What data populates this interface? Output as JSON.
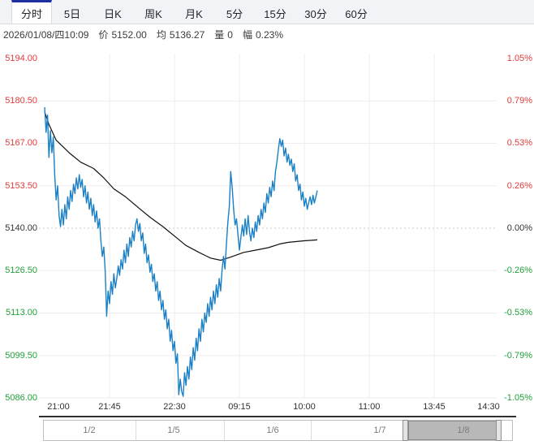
{
  "tabs": {
    "items": [
      {
        "label": "分时",
        "active": true
      },
      {
        "label": "5日"
      },
      {
        "label": "日K"
      },
      {
        "label": "周K"
      },
      {
        "label": "月K"
      },
      {
        "label": "5分"
      },
      {
        "label": "15分"
      },
      {
        "label": "30分"
      },
      {
        "label": "60分"
      }
    ]
  },
  "info": {
    "datetime": "2026/01/08/四10:09",
    "price_label": "价",
    "price_value": "5152.00",
    "avg_label": "均",
    "avg_value": "5136.27",
    "volume_label": "量",
    "volume_value": "0",
    "change_label": "幅",
    "change_value": "0.23%"
  },
  "axes": {
    "left": [
      {
        "text": "5194.00",
        "tone": "up"
      },
      {
        "text": "5180.50",
        "tone": "up"
      },
      {
        "text": "5167.00",
        "tone": "up"
      },
      {
        "text": "5153.50",
        "tone": "up"
      },
      {
        "text": "5140.00",
        "tone": "nt"
      },
      {
        "text": "5126.50",
        "tone": "dn"
      },
      {
        "text": "5113.00",
        "tone": "dn"
      },
      {
        "text": "5099.50",
        "tone": "dn"
      },
      {
        "text": "5086.00",
        "tone": "dn"
      }
    ],
    "right": [
      {
        "text": "1.05%",
        "tone": "up"
      },
      {
        "text": "0.79%",
        "tone": "up"
      },
      {
        "text": "0.53%",
        "tone": "up"
      },
      {
        "text": "0.26%",
        "tone": "up"
      },
      {
        "text": "0.00%",
        "tone": "nt"
      },
      {
        "text": "-0.26%",
        "tone": "dn"
      },
      {
        "text": "-0.53%",
        "tone": "dn"
      },
      {
        "text": "-0.79%",
        "tone": "dn"
      },
      {
        "text": "-1.05%",
        "tone": "dn"
      }
    ],
    "bottom": [
      "21:00",
      "21:45",
      "22:30",
      "09:15",
      "10:00",
      "11:00",
      "13:45",
      "14:30"
    ]
  },
  "colors": {
    "up": "#e23b3b",
    "down": "#21a03a",
    "neutral": "#333333",
    "price_line": "#1b80c6",
    "avg_line": "#111111",
    "tab_accent": "#1d2f9e",
    "grid": "#ededed",
    "axis_line": "#303030"
  },
  "navigator": {
    "labels": [
      "1/2",
      "1/5",
      "1/6",
      "1/7",
      "1/8"
    ],
    "selected_label": "1/8",
    "spark": [
      [
        53,
        0.42
      ],
      [
        150,
        0.42
      ],
      [
        152,
        0.55
      ],
      [
        166,
        0.55
      ],
      [
        170,
        0.62
      ],
      [
        182,
        0.57
      ],
      [
        192,
        0.6
      ],
      [
        203,
        0.57
      ],
      [
        214,
        0.66
      ],
      [
        226,
        0.76
      ],
      [
        238,
        0.88
      ],
      [
        248,
        0.95
      ],
      [
        256,
        0.9
      ],
      [
        262,
        0.94
      ],
      [
        270,
        0.72
      ],
      [
        278,
        0.56
      ],
      [
        288,
        0.6
      ],
      [
        297,
        0.5
      ],
      [
        307,
        0.56
      ],
      [
        317,
        0.48
      ],
      [
        327,
        0.53
      ],
      [
        337,
        0.42
      ],
      [
        347,
        0.47
      ],
      [
        357,
        0.38
      ],
      [
        367,
        0.43
      ],
      [
        377,
        0.35
      ],
      [
        382,
        0.33
      ],
      [
        384,
        0.15
      ],
      [
        392,
        0.22
      ],
      [
        400,
        0.14
      ],
      [
        410,
        0.2
      ],
      [
        420,
        0.11
      ],
      [
        428,
        0.17
      ],
      [
        433,
        0.3
      ],
      [
        437,
        0.58
      ],
      [
        441,
        0.52
      ],
      [
        447,
        0.57
      ],
      [
        455,
        0.48
      ],
      [
        463,
        0.53
      ],
      [
        471,
        0.44
      ],
      [
        479,
        0.5
      ],
      [
        487,
        0.4
      ],
      [
        495,
        0.45
      ],
      [
        502,
        0.52
      ],
      [
        510,
        0.48
      ],
      [
        518,
        0.56
      ],
      [
        526,
        0.5
      ],
      [
        534,
        0.6
      ],
      [
        540,
        0.66
      ],
      [
        546,
        0.57
      ],
      [
        552,
        0.62
      ],
      [
        560,
        0.48
      ],
      [
        566,
        0.56
      ],
      [
        572,
        0.42
      ],
      [
        578,
        0.52
      ],
      [
        585,
        0.46
      ],
      [
        592,
        0.54
      ],
      [
        599,
        0.4
      ],
      [
        606,
        0.47
      ],
      [
        613,
        0.36
      ],
      [
        620,
        0.42
      ],
      [
        626,
        0.32
      ],
      [
        632,
        0.38
      ]
    ]
  },
  "chart_data": {
    "type": "line",
    "title": "分时走势 (intraday price vs average)",
    "prev_close": 5140.0,
    "last_price": 5152.0,
    "average_price": 5136.27,
    "change_pct": "0.23%",
    "ylim": [
      5086.0,
      5194.0
    ],
    "x_total_minutes": 345,
    "price_ticks": [
      5194.0,
      5180.5,
      5167.0,
      5153.5,
      5140.0,
      5126.5,
      5113.0,
      5099.5,
      5086.0
    ],
    "pct_ticks": [
      "1.05%",
      "0.79%",
      "0.53%",
      "0.26%",
      "0.00%",
      "-0.26%",
      "-0.53%",
      "-0.79%",
      "-1.05%"
    ],
    "x_axis_ticks": [
      {
        "label": "21:00",
        "minute": 0
      },
      {
        "label": "21:45",
        "minute": 45
      },
      {
        "label": "22:30",
        "minute": 90
      },
      {
        "label": "09:15",
        "minute": 135
      },
      {
        "label": "10:00",
        "minute": 180
      },
      {
        "label": "11:00",
        "minute": 225
      },
      {
        "label": "13:45",
        "minute": 270
      },
      {
        "label": "14:30",
        "minute": 315
      }
    ],
    "series": [
      {
        "name": "price",
        "color": "#1b80c6",
        "points": [
          [
            0,
            5178.5
          ],
          [
            1,
            5170.5
          ],
          [
            2,
            5176
          ],
          [
            3,
            5162.5
          ],
          [
            4,
            5171
          ],
          [
            5,
            5164
          ],
          [
            6,
            5169
          ],
          [
            7,
            5157
          ],
          [
            8,
            5149
          ],
          [
            9,
            5153.5
          ],
          [
            10,
            5144
          ],
          [
            11,
            5140.5
          ],
          [
            12,
            5146
          ],
          [
            13,
            5141
          ],
          [
            14,
            5147.5
          ],
          [
            15,
            5143
          ],
          [
            16,
            5150
          ],
          [
            17,
            5146
          ],
          [
            18,
            5152
          ],
          [
            19,
            5148.5
          ],
          [
            20,
            5154
          ],
          [
            21,
            5151
          ],
          [
            22,
            5156
          ],
          [
            23,
            5152.5
          ],
          [
            24,
            5157
          ],
          [
            25,
            5153
          ],
          [
            26,
            5155.5
          ],
          [
            27,
            5150
          ],
          [
            28,
            5153.5
          ],
          [
            29,
            5148
          ],
          [
            30,
            5151.5
          ],
          [
            31,
            5146
          ],
          [
            32,
            5149.5
          ],
          [
            33,
            5144
          ],
          [
            34,
            5147.5
          ],
          [
            35,
            5142
          ],
          [
            36,
            5145.5
          ],
          [
            37,
            5140
          ],
          [
            38,
            5143
          ],
          [
            39,
            5136
          ],
          [
            40,
            5131
          ],
          [
            41,
            5134
          ],
          [
            42,
            5126
          ],
          [
            43,
            5112
          ],
          [
            44,
            5120
          ],
          [
            45,
            5116
          ],
          [
            46,
            5123
          ],
          [
            47,
            5119
          ],
          [
            48,
            5125.5
          ],
          [
            49,
            5121
          ],
          [
            50,
            5124
          ],
          [
            51,
            5128
          ],
          [
            52,
            5125
          ],
          [
            53,
            5130
          ],
          [
            54,
            5127
          ],
          [
            55,
            5133
          ],
          [
            56,
            5129
          ],
          [
            57,
            5135
          ],
          [
            58,
            5131
          ],
          [
            59,
            5137
          ],
          [
            60,
            5134
          ],
          [
            61,
            5139
          ],
          [
            62,
            5136
          ],
          [
            63,
            5141
          ],
          [
            64,
            5143
          ],
          [
            65,
            5139
          ],
          [
            66,
            5141.5
          ],
          [
            67,
            5136
          ],
          [
            68,
            5138.5
          ],
          [
            69,
            5132
          ],
          [
            70,
            5135
          ],
          [
            71,
            5129
          ],
          [
            72,
            5131.5
          ],
          [
            73,
            5126
          ],
          [
            74,
            5128.5
          ],
          [
            75,
            5123
          ],
          [
            76,
            5125.5
          ],
          [
            77,
            5120
          ],
          [
            78,
            5123
          ],
          [
            79,
            5117
          ],
          [
            80,
            5120
          ],
          [
            81,
            5114
          ],
          [
            82,
            5117
          ],
          [
            83,
            5111
          ],
          [
            84,
            5114
          ],
          [
            85,
            5108
          ],
          [
            86,
            5111
          ],
          [
            87,
            5104
          ],
          [
            88,
            5107.5
          ],
          [
            89,
            5101
          ],
          [
            90,
            5104
          ],
          [
            91,
            5097
          ],
          [
            92,
            5100
          ],
          [
            93,
            5087
          ],
          [
            94,
            5092
          ],
          [
            95,
            5088
          ],
          [
            96,
            5086.5
          ],
          [
            97,
            5094
          ],
          [
            98,
            5090
          ],
          [
            99,
            5096
          ],
          [
            100,
            5092
          ],
          [
            101,
            5099
          ],
          [
            102,
            5095
          ],
          [
            103,
            5102
          ],
          [
            104,
            5098
          ],
          [
            105,
            5105
          ],
          [
            106,
            5101
          ],
          [
            107,
            5108
          ],
          [
            108,
            5104
          ],
          [
            109,
            5111
          ],
          [
            110,
            5107
          ],
          [
            111,
            5113
          ],
          [
            112,
            5110
          ],
          [
            113,
            5116
          ],
          [
            114,
            5112
          ],
          [
            115,
            5118
          ],
          [
            116,
            5114
          ],
          [
            117,
            5120
          ],
          [
            118,
            5116
          ],
          [
            119,
            5122
          ],
          [
            120,
            5118
          ],
          [
            121,
            5124
          ],
          [
            122,
            5120
          ],
          [
            123,
            5127
          ],
          [
            124,
            5131
          ],
          [
            125,
            5127
          ],
          [
            126,
            5135
          ],
          [
            127,
            5142
          ],
          [
            128,
            5147
          ],
          [
            129,
            5158
          ],
          [
            130,
            5153
          ],
          [
            131,
            5146
          ],
          [
            132,
            5141
          ],
          [
            133,
            5143
          ],
          [
            134,
            5138
          ],
          [
            135,
            5133
          ],
          [
            136,
            5137
          ],
          [
            137,
            5141
          ],
          [
            138,
            5137.5
          ],
          [
            139,
            5143
          ],
          [
            140,
            5138
          ],
          [
            141,
            5144
          ],
          [
            142,
            5139
          ],
          [
            143,
            5136
          ],
          [
            144,
            5140
          ],
          [
            145,
            5137
          ],
          [
            146,
            5142
          ],
          [
            147,
            5139
          ],
          [
            148,
            5144
          ],
          [
            149,
            5141
          ],
          [
            150,
            5146
          ],
          [
            151,
            5143
          ],
          [
            152,
            5148
          ],
          [
            153,
            5145
          ],
          [
            154,
            5151
          ],
          [
            155,
            5148
          ],
          [
            156,
            5153
          ],
          [
            157,
            5150
          ],
          [
            158,
            5155
          ],
          [
            159,
            5152
          ],
          [
            160,
            5158
          ],
          [
            161,
            5161
          ],
          [
            162,
            5165
          ],
          [
            163,
            5168.5
          ],
          [
            164,
            5166
          ],
          [
            165,
            5168
          ],
          [
            166,
            5163
          ],
          [
            167,
            5165.5
          ],
          [
            168,
            5161
          ],
          [
            169,
            5163.5
          ],
          [
            170,
            5160
          ],
          [
            171,
            5162
          ],
          [
            172,
            5158
          ],
          [
            173,
            5160.5
          ],
          [
            174,
            5155
          ],
          [
            175,
            5157
          ],
          [
            176,
            5152
          ],
          [
            177,
            5154
          ],
          [
            178,
            5149
          ],
          [
            179,
            5151.5
          ],
          [
            180,
            5147
          ],
          [
            181,
            5149.5
          ],
          [
            182,
            5146
          ],
          [
            183,
            5148
          ],
          [
            184,
            5150
          ],
          [
            185,
            5147.5
          ],
          [
            186,
            5150.5
          ],
          [
            187,
            5148
          ],
          [
            188,
            5150
          ],
          [
            189,
            5152
          ]
        ]
      },
      {
        "name": "average",
        "color": "#111111",
        "points": [
          [
            0,
            5177
          ],
          [
            3,
            5173
          ],
          [
            8,
            5168
          ],
          [
            17,
            5164
          ],
          [
            25,
            5161
          ],
          [
            34,
            5159
          ],
          [
            41,
            5156
          ],
          [
            48,
            5152.5
          ],
          [
            56,
            5150
          ],
          [
            65,
            5146.5
          ],
          [
            73,
            5143.5
          ],
          [
            82,
            5140.5
          ],
          [
            90,
            5137.5
          ],
          [
            98,
            5134.5
          ],
          [
            107,
            5132.3
          ],
          [
            115,
            5130.5
          ],
          [
            122,
            5129.8
          ],
          [
            129,
            5130.8
          ],
          [
            138,
            5132.3
          ],
          [
            146,
            5133
          ],
          [
            155,
            5133.8
          ],
          [
            163,
            5135
          ],
          [
            169,
            5135.5
          ],
          [
            180,
            5136
          ],
          [
            189,
            5136.27
          ]
        ]
      }
    ]
  }
}
